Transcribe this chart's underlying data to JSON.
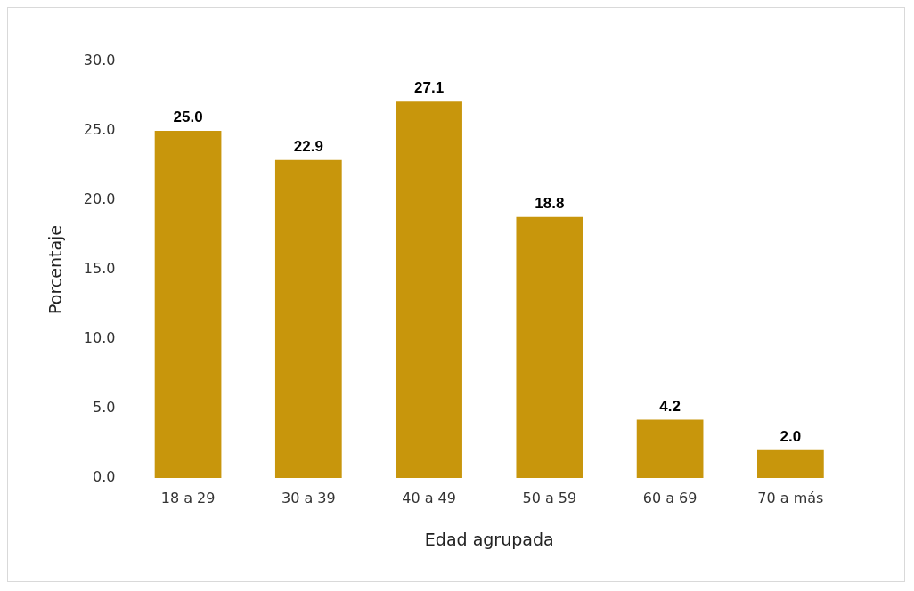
{
  "chart_data": {
    "type": "bar",
    "xlabel": "Edad agrupada",
    "ylabel": "Porcentaje",
    "categories": [
      "18 a 29",
      "30 a 39",
      "40 a 49",
      "50 a 59",
      "60 a 69",
      "70 a más"
    ],
    "values": [
      25.0,
      22.9,
      27.1,
      18.8,
      4.2,
      2.0
    ],
    "value_labels": [
      "25.0",
      "22.9",
      "27.1",
      "18.8",
      "4.2",
      "2.0"
    ],
    "color": "#c8960c",
    "ylim": [
      0,
      30
    ],
    "yticks": [
      {
        "value": 0,
        "label": "0.0"
      },
      {
        "value": 5,
        "label": "5.0"
      },
      {
        "value": 10,
        "label": "10.0"
      },
      {
        "value": 15,
        "label": "15.0"
      },
      {
        "value": 20,
        "label": "20.0"
      },
      {
        "value": 25,
        "label": "25.0"
      },
      {
        "value": 30,
        "label": "30.0"
      }
    ],
    "grid": false,
    "legend": false
  }
}
